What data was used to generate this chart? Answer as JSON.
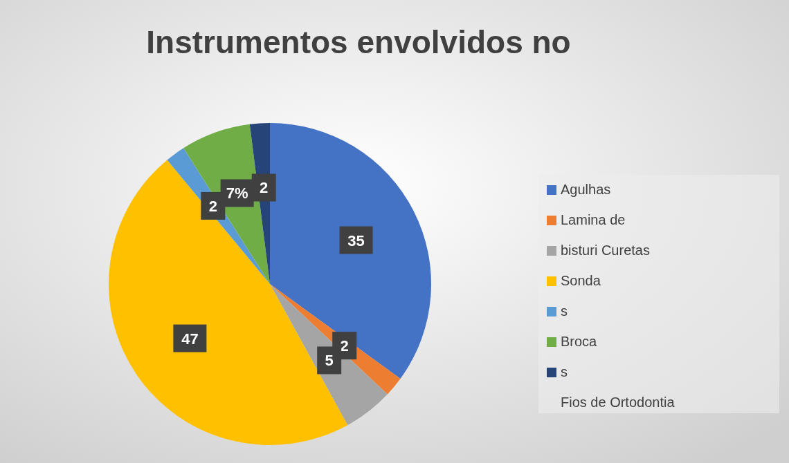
{
  "chart_data": {
    "type": "pie",
    "title": "Instrumentos envolvidos no",
    "categories": [
      "Agulhas",
      "Lamina de",
      "bisturi Curetas",
      "Sonda",
      "s",
      "Broca",
      "s"
    ],
    "values": [
      35,
      2,
      5,
      47,
      2,
      7,
      2
    ],
    "colors": [
      "#4472c4",
      "#ed7d31",
      "#a5a5a5",
      "#ffc000",
      "#5b9bd5",
      "#70ad47",
      "#264478"
    ],
    "value_labels": [
      "35",
      "2",
      "5",
      "47",
      "2",
      "7%",
      "2"
    ],
    "legend": "right",
    "annotations": [
      "Fios de Ortodontia"
    ]
  }
}
